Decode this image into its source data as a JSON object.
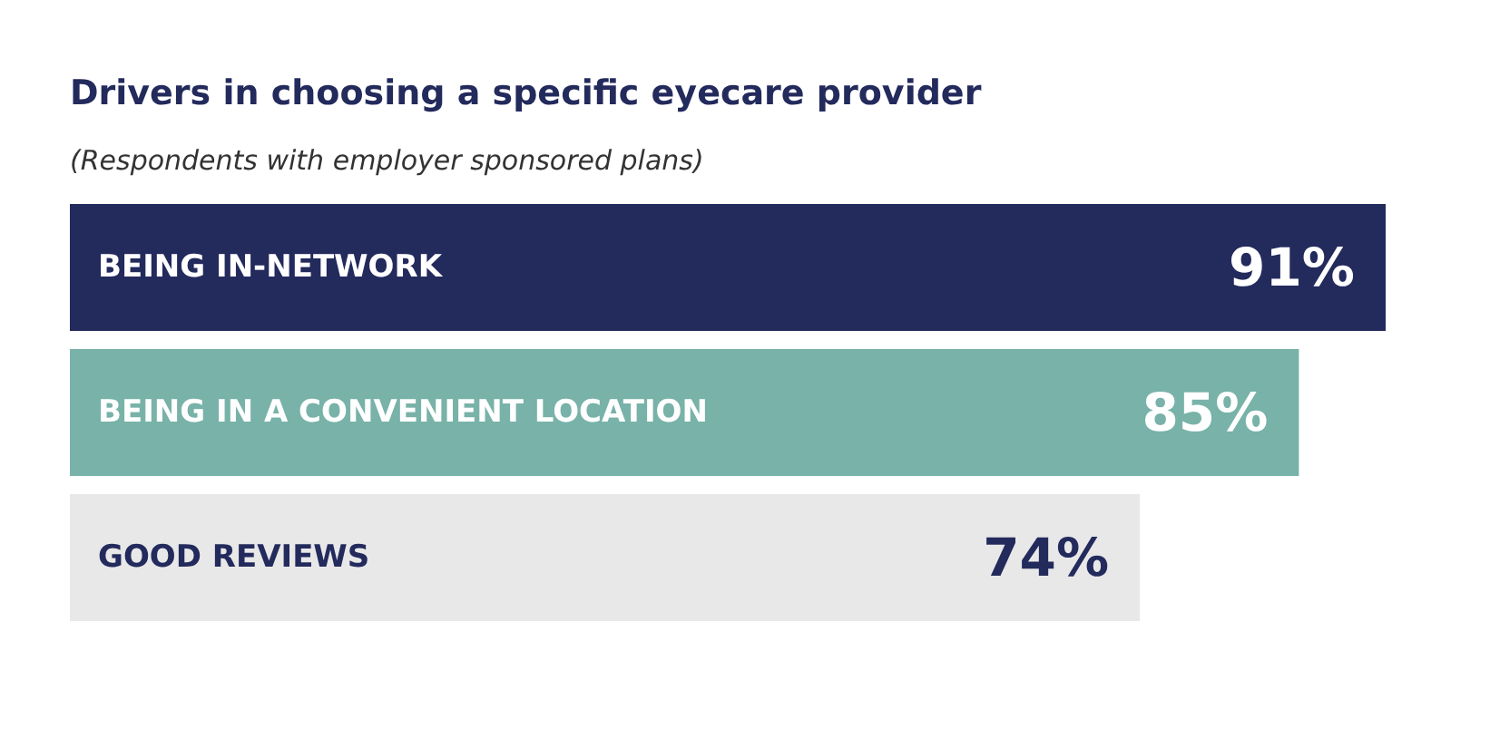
{
  "chart_data": {
    "type": "bar",
    "orientation": "horizontal",
    "title": "Drivers in choosing a specific eyecare provider",
    "subtitle": "(Respondents with employer sponsored plans)",
    "categories": [
      "BEING IN-NETWORK",
      "BEING IN A CONVENIENT LOCATION",
      "GOOD REVIEWS"
    ],
    "values": [
      91,
      85,
      74
    ],
    "colors": [
      "#232a5c",
      "#78b2a8",
      "#e8e8e8"
    ],
    "value_labels": [
      "91%",
      "85%",
      "74%"
    ]
  }
}
